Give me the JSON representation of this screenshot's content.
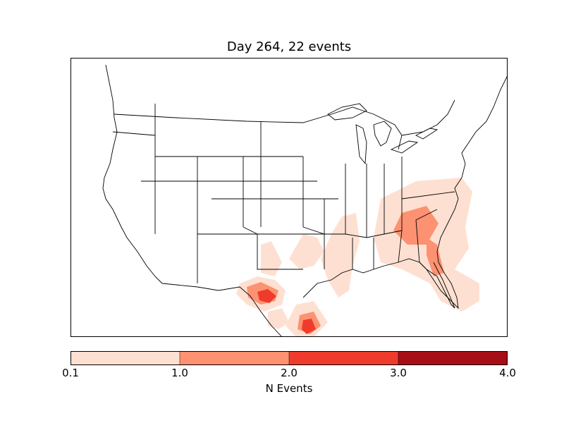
{
  "title": "Day 264, 22 events",
  "colorbar": {
    "label": "N Events",
    "ticks": [
      "0.1",
      "1.0",
      "2.0",
      "3.0",
      "4.0"
    ],
    "bins": [
      {
        "range": [
          0.1,
          1.0
        ],
        "color": "#fee0d2"
      },
      {
        "range": [
          1.0,
          2.0
        ],
        "color": "#fc9272"
      },
      {
        "range": [
          2.0,
          3.0
        ],
        "color": "#ef3b2c"
      },
      {
        "range": [
          3.0,
          4.0
        ],
        "color": "#a50f15"
      }
    ]
  },
  "map": {
    "region": "North America (CONUS)",
    "features": [
      "coastlines",
      "country-borders",
      "state-borders",
      "great-lakes"
    ],
    "event_areas": [
      {
        "area": "Southeast (Carolinas–Georgia–Florida)",
        "max_level": "1.0–2.0"
      },
      {
        "area": "Lower Mississippi Valley",
        "max_level": "0.1–1.0"
      },
      {
        "area": "Texas / Oklahoma",
        "max_level": "0.1–1.0"
      },
      {
        "area": "West Texas / Rio Grande",
        "max_level": "2.0–3.0"
      },
      {
        "area": "South Texas coast",
        "max_level": "2.0–3.0"
      }
    ]
  }
}
